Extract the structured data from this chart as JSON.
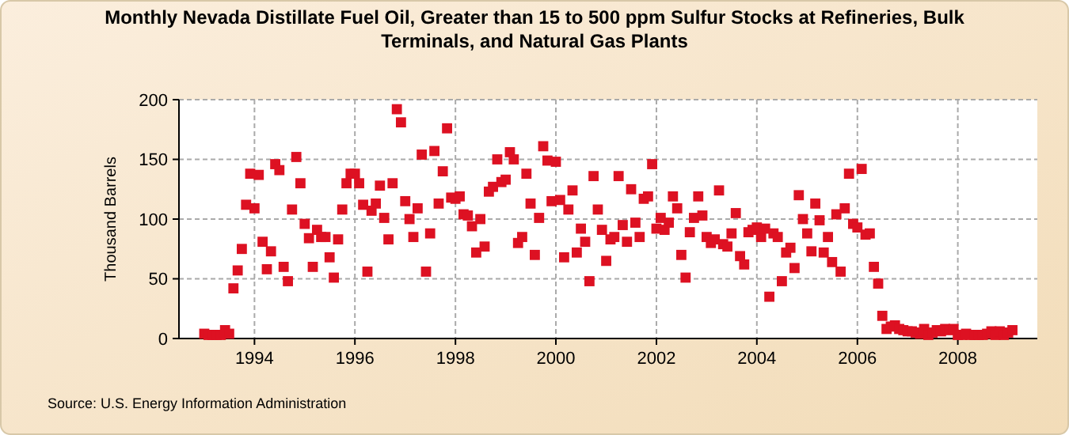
{
  "chart_data": {
    "type": "scatter",
    "title": "Monthly Nevada Distillate Fuel Oil, Greater than 15 to 500 ppm Sulfur Stocks at Refineries, Bulk Terminals, and Natural Gas Plants",
    "ylabel": "Thousand Barrels",
    "annotations": [
      "Source: U.S. Energy Information Administration"
    ],
    "x": [
      "1993-01",
      "1993-02",
      "1993-03",
      "1993-04",
      "1993-05",
      "1993-06",
      "1993-07",
      "1993-08",
      "1993-09",
      "1993-10",
      "1993-11",
      "1993-12",
      "1994-01",
      "1994-02",
      "1994-03",
      "1994-04",
      "1994-05",
      "1994-06",
      "1994-07",
      "1994-08",
      "1994-09",
      "1994-10",
      "1994-11",
      "1994-12",
      "1995-01",
      "1995-02",
      "1995-03",
      "1995-04",
      "1995-05",
      "1995-06",
      "1995-07",
      "1995-08",
      "1995-09",
      "1995-10",
      "1995-11",
      "1995-12",
      "1996-01",
      "1996-02",
      "1996-03",
      "1996-04",
      "1996-05",
      "1996-06",
      "1996-07",
      "1996-08",
      "1996-09",
      "1996-10",
      "1996-11",
      "1996-12",
      "1997-01",
      "1997-02",
      "1997-03",
      "1997-04",
      "1997-05",
      "1997-06",
      "1997-07",
      "1997-08",
      "1997-09",
      "1997-10",
      "1997-11",
      "1997-12",
      "1998-01",
      "1998-02",
      "1998-03",
      "1998-04",
      "1998-05",
      "1998-06",
      "1998-07",
      "1998-08",
      "1998-09",
      "1998-10",
      "1998-11",
      "1998-12",
      "1999-01",
      "1999-02",
      "1999-03",
      "1999-04",
      "1999-05",
      "1999-06",
      "1999-07",
      "1999-08",
      "1999-09",
      "1999-10",
      "1999-11",
      "1999-12",
      "2000-01",
      "2000-02",
      "2000-03",
      "2000-04",
      "2000-05",
      "2000-06",
      "2000-07",
      "2000-08",
      "2000-09",
      "2000-10",
      "2000-11",
      "2000-12",
      "2001-01",
      "2001-02",
      "2001-03",
      "2001-04",
      "2001-05",
      "2001-06",
      "2001-07",
      "2001-08",
      "2001-09",
      "2001-10",
      "2001-11",
      "2001-12",
      "2002-01",
      "2002-02",
      "2002-03",
      "2002-04",
      "2002-05",
      "2002-06",
      "2002-07",
      "2002-08",
      "2002-09",
      "2002-10",
      "2002-11",
      "2002-12",
      "2003-01",
      "2003-02",
      "2003-03",
      "2003-04",
      "2003-05",
      "2003-06",
      "2003-07",
      "2003-08",
      "2003-09",
      "2003-10",
      "2003-11",
      "2003-12",
      "2004-01",
      "2004-02",
      "2004-03",
      "2004-04",
      "2004-05",
      "2004-06",
      "2004-07",
      "2004-08",
      "2004-09",
      "2004-10",
      "2004-11",
      "2004-12",
      "2005-01",
      "2005-02",
      "2005-03",
      "2005-04",
      "2005-05",
      "2005-06",
      "2005-07",
      "2005-08",
      "2005-09",
      "2005-10",
      "2005-11",
      "2005-12",
      "2006-01",
      "2006-02",
      "2006-03",
      "2006-04",
      "2006-05",
      "2006-06",
      "2006-07",
      "2006-08",
      "2006-09",
      "2006-10",
      "2006-11",
      "2006-12",
      "2007-01",
      "2007-02",
      "2007-03",
      "2007-04",
      "2007-05",
      "2007-06",
      "2007-07",
      "2007-08",
      "2007-09",
      "2007-10",
      "2007-11",
      "2007-12",
      "2008-01",
      "2008-02",
      "2008-03",
      "2008-04",
      "2008-05",
      "2008-06",
      "2008-07",
      "2008-08",
      "2008-09",
      "2008-10",
      "2008-11",
      "2008-12",
      "2009-01",
      "2009-02"
    ],
    "series": [
      {
        "color": "#dd1122",
        "values": [
          4,
          3,
          3,
          3,
          3,
          7,
          4,
          42,
          57,
          75,
          112,
          138,
          109,
          137,
          81,
          58,
          73,
          146,
          141,
          60,
          48,
          108,
          152,
          130,
          96,
          84,
          60,
          91,
          85,
          85,
          68,
          51,
          83,
          108,
          130,
          138,
          138,
          130,
          112,
          56,
          107,
          113,
          128,
          101,
          83,
          130,
          192,
          181,
          115,
          100,
          85,
          109,
          154,
          56,
          88,
          157,
          113,
          140,
          176,
          118,
          117,
          119,
          104,
          103,
          94,
          72,
          100,
          77,
          123,
          127,
          150,
          131,
          133,
          156,
          150,
          80,
          85,
          138,
          113,
          70,
          101,
          161,
          149,
          115,
          148,
          116,
          68,
          108,
          124,
          72,
          92,
          81,
          48,
          136,
          108,
          91,
          65,
          83,
          85,
          136,
          95,
          81,
          125,
          97,
          85,
          117,
          119,
          146,
          92,
          101,
          91,
          97,
          119,
          109,
          70,
          51,
          89,
          101,
          119,
          103,
          85,
          80,
          83,
          124,
          79,
          77,
          88,
          105,
          69,
          62,
          89,
          91,
          93,
          85,
          92,
          35,
          88,
          85,
          48,
          72,
          76,
          59,
          120,
          100,
          88,
          73,
          113,
          99,
          72,
          85,
          64,
          104,
          56,
          109,
          138,
          96,
          93,
          142,
          87,
          88,
          60,
          46,
          19,
          8,
          10,
          11,
          8,
          7,
          6,
          6,
          5,
          4,
          8,
          3,
          5,
          7,
          6,
          8,
          7,
          8,
          3,
          3,
          4,
          3,
          3,
          3,
          3,
          4,
          6,
          3,
          6,
          3,
          5,
          7
        ]
      }
    ],
    "xlim": [
      "1992-07",
      "2009-08"
    ],
    "xticks": [
      {
        "value": "1994",
        "label": "1994"
      },
      {
        "value": "1996",
        "label": "1996"
      },
      {
        "value": "1998",
        "label": "1998"
      },
      {
        "value": "2000",
        "label": "2000"
      },
      {
        "value": "2002",
        "label": "2002"
      },
      {
        "value": "2004",
        "label": "2004"
      },
      {
        "value": "2006",
        "label": "2006"
      },
      {
        "value": "2008",
        "label": "2008"
      }
    ],
    "ylim": [
      0,
      200
    ],
    "yticks": [
      0,
      50,
      100,
      150,
      200
    ],
    "grid": true,
    "marker": "square"
  }
}
